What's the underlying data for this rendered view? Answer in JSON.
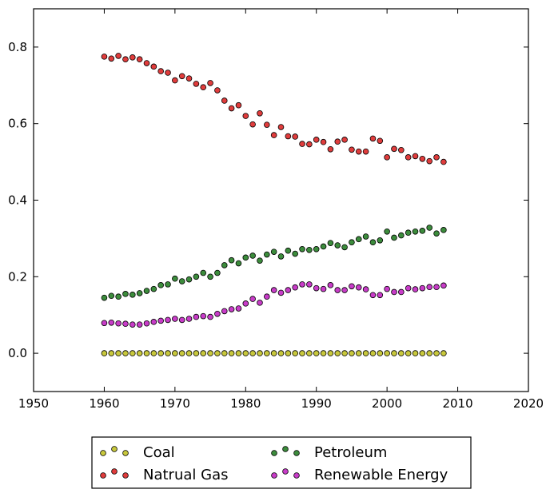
{
  "chart_data": {
    "type": "scatter",
    "title": "",
    "xlabel": "",
    "ylabel": "",
    "xlim": [
      1950,
      2020
    ],
    "ylim": [
      -0.1,
      0.9
    ],
    "xticks": [
      1950,
      1960,
      1970,
      1980,
      1990,
      2000,
      2010,
      2020
    ],
    "yticks": [
      0.0,
      0.2,
      0.4,
      0.6,
      0.8
    ],
    "xtick_labels": [
      "1950",
      "1960",
      "1970",
      "1980",
      "1990",
      "2000",
      "2010",
      "2020"
    ],
    "ytick_labels": [
      "0.0",
      "0.2",
      "0.4",
      "0.6",
      "0.8"
    ],
    "grid": false,
    "legend_position": "bottom-center, below plot, 2 columns",
    "x": [
      1960,
      1961,
      1962,
      1963,
      1964,
      1965,
      1966,
      1967,
      1968,
      1969,
      1970,
      1971,
      1972,
      1973,
      1974,
      1975,
      1976,
      1977,
      1978,
      1979,
      1980,
      1981,
      1982,
      1983,
      1984,
      1985,
      1986,
      1987,
      1988,
      1989,
      1990,
      1991,
      1992,
      1993,
      1994,
      1995,
      1996,
      1997,
      1998,
      1999,
      2000,
      2001,
      2002,
      2003,
      2004,
      2005,
      2006,
      2007,
      2008
    ],
    "series": [
      {
        "name": "Coal",
        "color": "#c8c83c",
        "values": [
          0,
          0,
          0,
          0,
          0,
          0,
          0,
          0,
          0,
          0,
          0,
          0,
          0,
          0,
          0,
          0,
          0,
          0,
          0,
          0,
          0,
          0,
          0,
          0,
          0,
          0,
          0,
          0,
          0,
          0,
          0,
          0,
          0,
          0,
          0,
          0,
          0,
          0,
          0,
          0,
          0,
          0,
          0,
          0,
          0,
          0,
          0,
          0,
          0
        ]
      },
      {
        "name": "Natrual Gas",
        "color": "#e03c3c",
        "values": [
          0.775,
          0.77,
          0.777,
          0.768,
          0.773,
          0.768,
          0.758,
          0.749,
          0.737,
          0.733,
          0.713,
          0.724,
          0.718,
          0.704,
          0.695,
          0.706,
          0.687,
          0.66,
          0.64,
          0.648,
          0.62,
          0.598,
          0.627,
          0.597,
          0.57,
          0.591,
          0.567,
          0.566,
          0.547,
          0.546,
          0.558,
          0.552,
          0.533,
          0.553,
          0.558,
          0.532,
          0.527,
          0.527,
          0.561,
          0.555,
          0.512,
          0.534,
          0.531,
          0.512,
          0.515,
          0.508,
          0.502,
          0.512,
          0.5
        ]
      },
      {
        "name": "Petroleum",
        "color": "#3c8c3c",
        "values": [
          0.145,
          0.15,
          0.148,
          0.155,
          0.153,
          0.157,
          0.163,
          0.168,
          0.178,
          0.18,
          0.195,
          0.188,
          0.193,
          0.2,
          0.21,
          0.2,
          0.21,
          0.23,
          0.243,
          0.235,
          0.25,
          0.255,
          0.242,
          0.258,
          0.265,
          0.253,
          0.268,
          0.26,
          0.272,
          0.27,
          0.272,
          0.279,
          0.288,
          0.282,
          0.277,
          0.29,
          0.298,
          0.305,
          0.29,
          0.295,
          0.318,
          0.302,
          0.308,
          0.315,
          0.318,
          0.32,
          0.328,
          0.313,
          0.322
        ]
      },
      {
        "name": "Renewable Energy",
        "color": "#c83cc8",
        "values": [
          0.079,
          0.08,
          0.078,
          0.077,
          0.075,
          0.075,
          0.078,
          0.082,
          0.085,
          0.087,
          0.09,
          0.087,
          0.09,
          0.095,
          0.097,
          0.095,
          0.103,
          0.11,
          0.115,
          0.117,
          0.13,
          0.142,
          0.132,
          0.148,
          0.165,
          0.158,
          0.165,
          0.172,
          0.18,
          0.18,
          0.17,
          0.168,
          0.178,
          0.165,
          0.165,
          0.175,
          0.172,
          0.167,
          0.152,
          0.152,
          0.168,
          0.16,
          0.16,
          0.17,
          0.167,
          0.17,
          0.173,
          0.173,
          0.177
        ]
      }
    ]
  }
}
